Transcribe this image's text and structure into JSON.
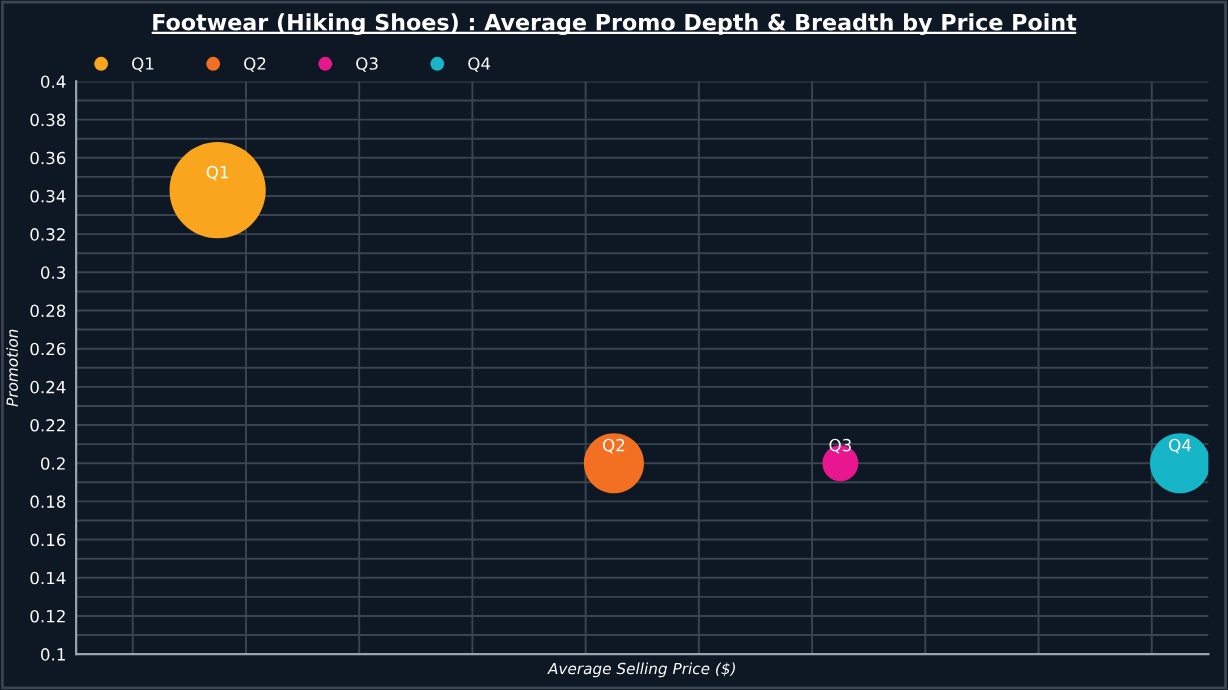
{
  "chart_data": {
    "type": "bubble",
    "title": "Footwear (Hiking Shoes) : Average Promo Depth & Breadth by Price Point",
    "xlabel": "Average Selling Price ($)",
    "ylabel": "Promotion",
    "categories": [
      null,
      null,
      null,
      null,
      null,
      null,
      null,
      null,
      null,
      null,
      null,
      null,
      null,
      null,
      null,
      null,
      null,
      null,
      null,
      null
    ],
    "series": [
      {
        "name": "Q1",
        "color": "#f9a61e",
        "values": [
          null,
          null,
          0.343,
          null,
          null,
          null,
          null,
          null,
          null,
          null,
          null,
          null,
          null,
          null,
          null,
          null,
          null,
          null,
          null,
          null
        ],
        "sizes": [
          null,
          null,
          1,
          null,
          null,
          null,
          null,
          null,
          null,
          null,
          null,
          null,
          null,
          null,
          null,
          null,
          null,
          null,
          null,
          null
        ]
      },
      {
        "name": "Q2",
        "color": "#f36f21",
        "values": [
          null,
          null,
          null,
          null,
          null,
          null,
          null,
          null,
          null,
          0.2,
          null,
          null,
          null,
          null,
          null,
          null,
          null,
          null,
          null,
          null
        ],
        "sizes": [
          null,
          null,
          null,
          null,
          null,
          null,
          null,
          null,
          null,
          0.39,
          null,
          null,
          null,
          null,
          null,
          null,
          null,
          null,
          null,
          null
        ]
      },
      {
        "name": "Q3",
        "color": "#e8168f",
        "values": [
          null,
          null,
          null,
          null,
          null,
          null,
          null,
          null,
          null,
          null,
          null,
          null,
          null,
          0.2,
          null,
          null,
          null,
          null,
          null,
          null
        ],
        "sizes": [
          null,
          null,
          null,
          null,
          null,
          null,
          null,
          null,
          null,
          null,
          null,
          null,
          null,
          0.14,
          null,
          null,
          null,
          null,
          null,
          null
        ]
      },
      {
        "name": "Q4",
        "color": "#17b5c8",
        "values": [
          null,
          null,
          null,
          null,
          null,
          null,
          null,
          null,
          null,
          null,
          null,
          null,
          null,
          null,
          null,
          null,
          null,
          null,
          null,
          0.2
        ],
        "sizes": [
          null,
          null,
          null,
          null,
          null,
          null,
          null,
          null,
          null,
          null,
          null,
          null,
          null,
          null,
          null,
          null,
          null,
          null,
          null,
          0.39
        ]
      }
    ],
    "ylim": [
      0.1,
      0.4
    ],
    "yticks": [
      0.1,
      0.12,
      0.14,
      0.16,
      0.18,
      0.2,
      0.22,
      0.24,
      0.26,
      0.28,
      0.3,
      0.32,
      0.34,
      0.36,
      0.38,
      0.4
    ],
    "tick_labels": "y",
    "grid": true,
    "legend": "top left"
  }
}
